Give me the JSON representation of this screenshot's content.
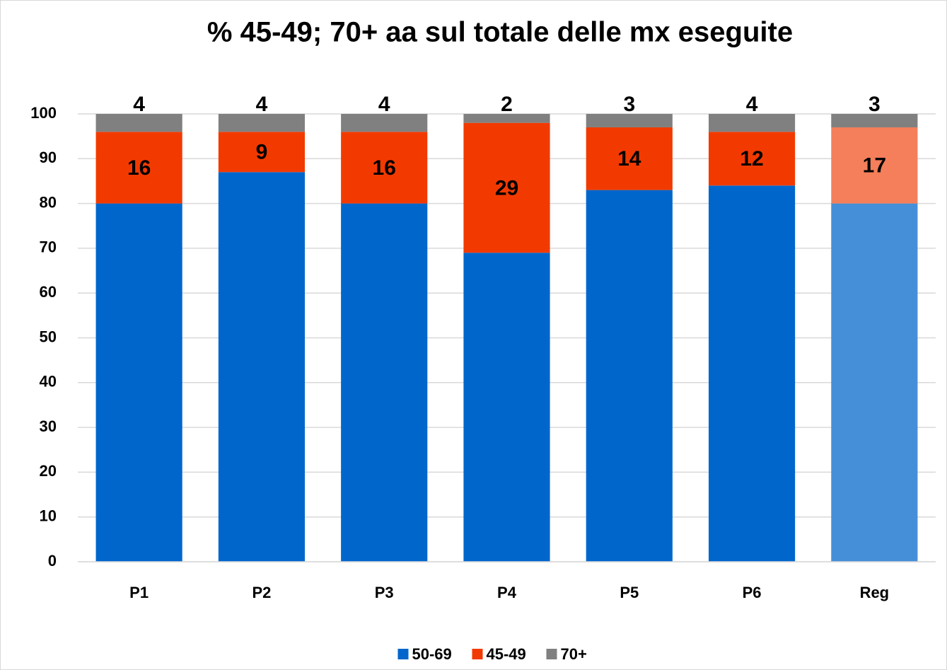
{
  "chart_data": {
    "type": "stacked_bar",
    "title": "% 45-49; 70+ aa sul totale delle mx eseguite",
    "categories": [
      "P1",
      "P2",
      "P3",
      "P4",
      "P5",
      "P6",
      "Reg"
    ],
    "series": [
      {
        "name": "50-69",
        "color": "#0066cc",
        "colors": [
          "#0066cc",
          "#0066cc",
          "#0066cc",
          "#0066cc",
          "#0066cc",
          "#0066cc",
          "#458fd8"
        ],
        "values": [
          80,
          87,
          80,
          69,
          83,
          84,
          80
        ]
      },
      {
        "name": "45-49",
        "color": "#f23a00",
        "colors": [
          "#f23a00",
          "#f23a00",
          "#f23a00",
          "#f23a00",
          "#f23a00",
          "#f23a00",
          "#f47f5a"
        ],
        "values": [
          16,
          9,
          16,
          29,
          14,
          12,
          17
        ]
      },
      {
        "name": "70+",
        "color": "#808080",
        "colors": [
          "#808080",
          "#808080",
          "#808080",
          "#808080",
          "#808080",
          "#808080",
          "#808080"
        ],
        "values": [
          4,
          4,
          4,
          2,
          3,
          4,
          3
        ]
      }
    ],
    "ylim": [
      0,
      100
    ],
    "yticks": [
      0,
      10,
      20,
      30,
      40,
      50,
      60,
      70,
      80,
      90,
      100
    ],
    "grid": true,
    "legend": "bottom"
  }
}
